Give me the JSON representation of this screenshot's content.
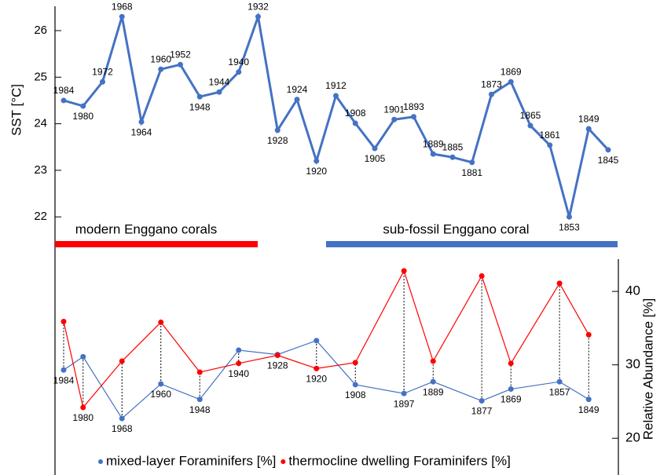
{
  "chart_data": [
    {
      "type": "line",
      "ylabel": "SST [°C]",
      "color": "#4472c4",
      "categories": [
        "1984",
        "1980",
        "1972",
        "1968",
        "1964",
        "1960",
        "1952",
        "1948",
        "1944",
        "1940",
        "1932",
        "1928",
        "1924",
        "1920",
        "1912",
        "1908",
        "1905",
        "1901",
        "1893",
        "1889",
        "1885",
        "1881",
        "1873",
        "1869",
        "1865",
        "1861",
        "1853",
        "1849",
        "1845"
      ],
      "values": [
        24.5,
        24.38,
        24.9,
        26.3,
        24.04,
        25.17,
        25.27,
        24.58,
        24.68,
        25.11,
        26.3,
        23.86,
        24.52,
        23.2,
        24.6,
        24.01,
        23.47,
        24.09,
        24.15,
        23.35,
        23.28,
        23.17,
        24.63,
        24.9,
        23.96,
        23.54,
        22.0,
        23.89,
        23.44
      ],
      "ylim": [
        21.7,
        26.5
      ],
      "yticks": [
        22,
        23,
        24,
        25,
        26
      ],
      "annotations": [
        {
          "text": "modern Enggano corals",
          "color": "#ff0000"
        },
        {
          "text": "sub-fossil Enggano coral",
          "color": "#4472c4"
        }
      ]
    },
    {
      "type": "line",
      "y2label": "Relative Abundance [%]",
      "categories": [
        "1984",
        "1980",
        "1968",
        "1960",
        "1948",
        "1940",
        "1928",
        "1920",
        "1908",
        "1897",
        "1889",
        "1877",
        "1869",
        "1857",
        "1849"
      ],
      "series": [
        {
          "name": "mixed-layer Foraminifers [%]",
          "color": "#4472c4",
          "axis": "y2",
          "values": [
            29.3,
            31.1,
            22.7,
            27.4,
            25.3,
            32.0,
            31.4,
            33.3,
            27.3,
            26.1,
            27.7,
            25.1,
            26.7,
            27.7,
            25.3
          ]
        },
        {
          "name": "thermocline dwelling Foraminifers [%]",
          "color": "#ff0000",
          "axis": "y2",
          "values": [
            35.9,
            24.2,
            30.5,
            35.8,
            29.0,
            30.2,
            31.3,
            29.5,
            30.3,
            42.8,
            30.5,
            42.1,
            30.2,
            41.1,
            34.1
          ]
        }
      ],
      "y2lim": [
        15,
        44.4
      ],
      "y2ticks": [
        20,
        30,
        40
      ]
    }
  ]
}
